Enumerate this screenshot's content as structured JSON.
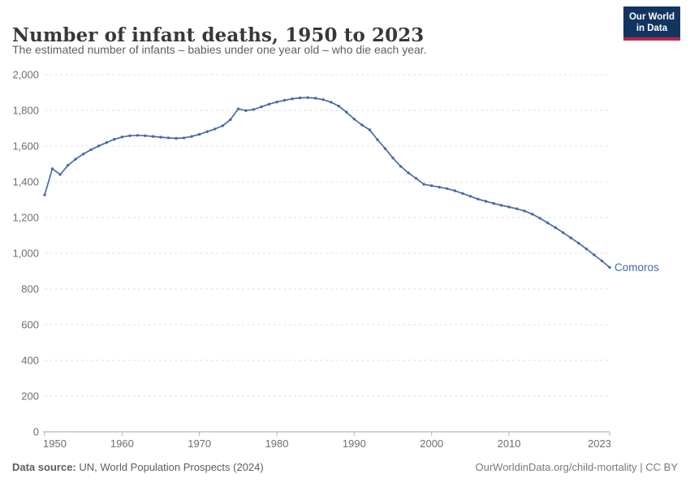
{
  "header": {
    "title": "Number of infant deaths, 1950 to 2023",
    "subtitle": "The estimated number of infants – babies under one year old – who die each year."
  },
  "logo": {
    "line1": "Our World",
    "line2": "in Data"
  },
  "footer": {
    "source_label": "Data source:",
    "source_text": " UN, World Population Prospects (2024)",
    "credit": "OurWorldinData.org/child-mortality | CC BY"
  },
  "colors": {
    "line": "#486aa5",
    "series_label": "#3d6bae",
    "grid": "#dcdcdc",
    "axis": "#a3a3a3",
    "tick": "#b5b5b5",
    "tick_label": "#6e6e6e",
    "logo_navy": "#12355f",
    "logo_red": "#bc2749"
  },
  "chart_data": {
    "type": "line",
    "title": "Number of infant deaths, 1950 to 2023",
    "xlabel": "",
    "ylabel": "",
    "xlim": [
      1950,
      2023
    ],
    "ylim": [
      0,
      2000
    ],
    "grid": "horizontal-dashed",
    "legend_position": "end-of-line-label",
    "y_ticks": [
      {
        "value": 0,
        "label": "0"
      },
      {
        "value": 200,
        "label": "200"
      },
      {
        "value": 400,
        "label": "400"
      },
      {
        "value": 600,
        "label": "600"
      },
      {
        "value": 800,
        "label": "800"
      },
      {
        "value": 1000,
        "label": "1,000"
      },
      {
        "value": 1200,
        "label": "1,200"
      },
      {
        "value": 1400,
        "label": "1,400"
      },
      {
        "value": 1600,
        "label": "1,600"
      },
      {
        "value": 1800,
        "label": "1,800"
      },
      {
        "value": 2000,
        "label": "2,000"
      }
    ],
    "x_ticks": [
      {
        "value": 1950,
        "label": "1950",
        "anchor": "start"
      },
      {
        "value": 1960,
        "label": "1960",
        "anchor": "middle"
      },
      {
        "value": 1970,
        "label": "1970",
        "anchor": "middle"
      },
      {
        "value": 1980,
        "label": "1980",
        "anchor": "middle"
      },
      {
        "value": 1990,
        "label": "1990",
        "anchor": "middle"
      },
      {
        "value": 2000,
        "label": "2000",
        "anchor": "middle"
      },
      {
        "value": 2010,
        "label": "2010",
        "anchor": "middle"
      },
      {
        "value": 2023,
        "label": "2023",
        "anchor": "end"
      }
    ],
    "series": [
      {
        "name": "Comoros",
        "years": [
          1950,
          1951,
          1952,
          1953,
          1954,
          1955,
          1956,
          1957,
          1958,
          1959,
          1960,
          1961,
          1962,
          1963,
          1964,
          1965,
          1966,
          1967,
          1968,
          1969,
          1970,
          1971,
          1972,
          1973,
          1974,
          1975,
          1976,
          1977,
          1978,
          1979,
          1980,
          1981,
          1982,
          1983,
          1984,
          1985,
          1986,
          1987,
          1988,
          1989,
          1990,
          1991,
          1992,
          1993,
          1994,
          1995,
          1996,
          1997,
          1998,
          1999,
          2000,
          2001,
          2002,
          2003,
          2004,
          2005,
          2006,
          2007,
          2008,
          2009,
          2010,
          2011,
          2012,
          2013,
          2014,
          2015,
          2016,
          2017,
          2018,
          2019,
          2020,
          2021,
          2022,
          2023
        ],
        "values": [
          1327,
          1473,
          1441,
          1492,
          1527,
          1556,
          1580,
          1601,
          1620,
          1638,
          1651,
          1658,
          1660,
          1658,
          1654,
          1650,
          1646,
          1643,
          1646,
          1654,
          1666,
          1681,
          1696,
          1714,
          1748,
          1808,
          1799,
          1805,
          1820,
          1835,
          1847,
          1857,
          1865,
          1870,
          1872,
          1868,
          1860,
          1846,
          1824,
          1790,
          1751,
          1718,
          1691,
          1636,
          1586,
          1533,
          1487,
          1450,
          1419,
          1386,
          1378,
          1370,
          1362,
          1350,
          1335,
          1319,
          1303,
          1291,
          1279,
          1268,
          1259,
          1249,
          1237,
          1219,
          1196,
          1170,
          1143,
          1115,
          1086,
          1056,
          1024,
          991,
          957,
          921
        ]
      }
    ]
  }
}
